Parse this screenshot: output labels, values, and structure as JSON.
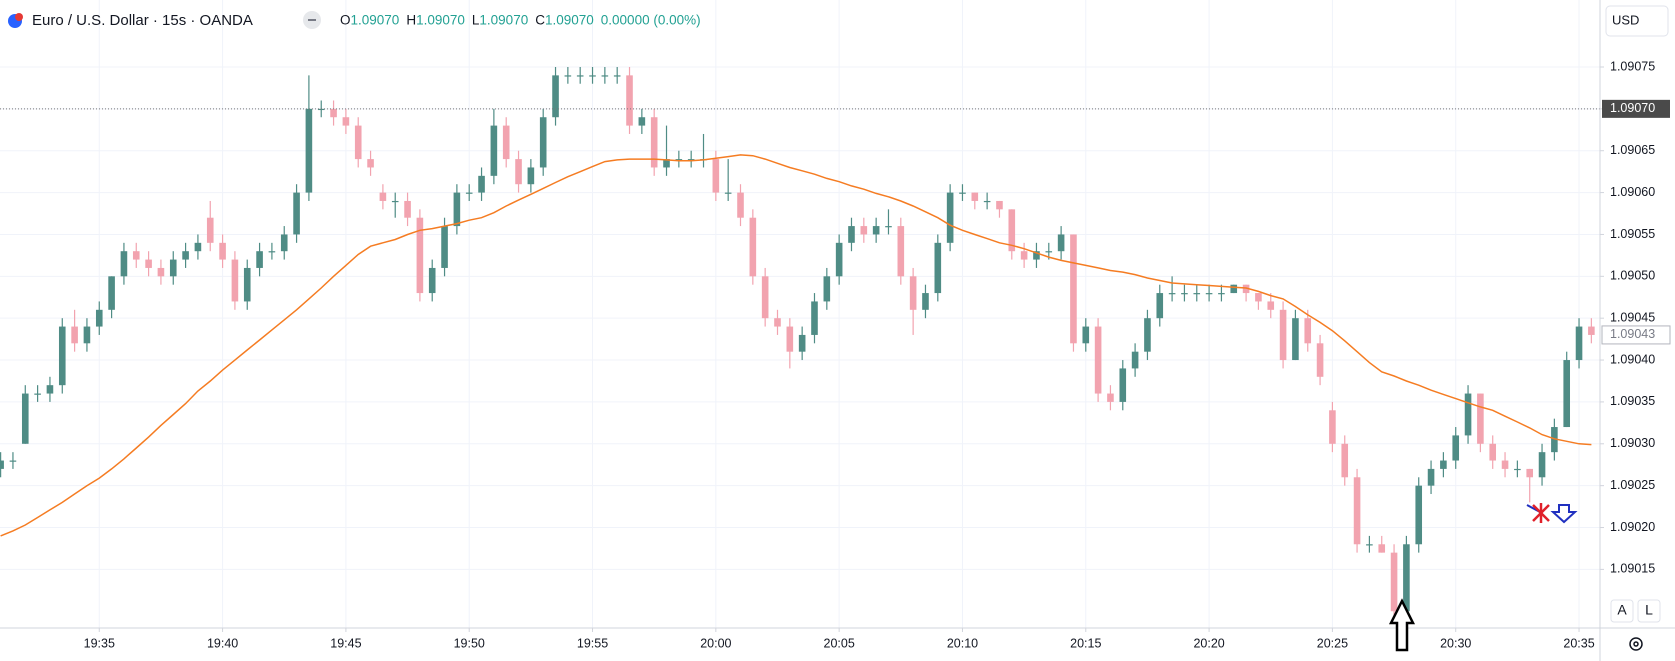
{
  "header": {
    "title": "Euro / U.S. Dollar · 15s · OANDA",
    "ohlc": [
      {
        "key": "O",
        "value": "1.09070"
      },
      {
        "key": "H",
        "value": "1.09070"
      },
      {
        "key": "L",
        "value": "1.09070"
      },
      {
        "key": "C",
        "value": "1.09070"
      }
    ],
    "change": "0.00000 (0.00%)"
  },
  "ui": {
    "currency": "USD",
    "buttons": [
      "A",
      "L"
    ]
  },
  "chart_data": {
    "type": "candlestick",
    "up_color": "#4f8c85",
    "down_color": "#f2a3af",
    "ma_color": "#f57c22",
    "grid": true,
    "xlim": [
      -0.05,
      129.7
    ],
    "xticks": [
      {
        "value": 8,
        "label": "19:35"
      },
      {
        "value": 18,
        "label": "19:40"
      },
      {
        "value": 28,
        "label": "19:45"
      },
      {
        "value": 38,
        "label": "19:50"
      },
      {
        "value": 48,
        "label": "19:55"
      },
      {
        "value": 58,
        "label": "20:00"
      },
      {
        "value": 68,
        "label": "20:05"
      },
      {
        "value": 78,
        "label": "20:10"
      },
      {
        "value": 88,
        "label": "20:15"
      },
      {
        "value": 98,
        "label": "20:20"
      },
      {
        "value": 108,
        "label": "20:25"
      },
      {
        "value": 118,
        "label": "20:30"
      },
      {
        "value": 128,
        "label": "20:35"
      }
    ],
    "ylim": [
      1.09008,
      1.09083
    ],
    "yticks": [
      {
        "value": 1.09015,
        "label": "1.09015"
      },
      {
        "value": 1.0902,
        "label": "1.09020"
      },
      {
        "value": 1.09025,
        "label": "1.09025"
      },
      {
        "value": 1.0903,
        "label": "1.09030"
      },
      {
        "value": 1.09035,
        "label": "1.09035"
      },
      {
        "value": 1.0904,
        "label": "1.09040"
      },
      {
        "value": 1.09045,
        "label": "1.09045"
      },
      {
        "value": 1.0905,
        "label": "1.09050"
      },
      {
        "value": 1.09055,
        "label": "1.09055"
      },
      {
        "value": 1.0906,
        "label": "1.09060"
      },
      {
        "value": 1.09065,
        "label": "1.09065"
      },
      {
        "value": 1.0907,
        "label": "1.09070"
      },
      {
        "value": 1.09075,
        "label": "1.09075"
      }
    ],
    "price_markers": [
      {
        "value": 1.0907,
        "label": "1.09070"
      },
      {
        "value": 1.09043,
        "label": "1.09043"
      }
    ],
    "open": [
      1.09027,
      1.09028,
      1.0903,
      1.09036,
      1.09036,
      1.09037,
      1.09044,
      1.09042,
      1.09044,
      1.09046,
      1.0905,
      1.09053,
      1.09052,
      1.09051,
      1.0905,
      1.09052,
      1.09053,
      1.09057,
      1.09054,
      1.09052,
      1.09047,
      1.09051,
      1.09053,
      1.09053,
      1.09055,
      1.0906,
      1.0907,
      1.0907,
      1.09069,
      1.09068,
      1.09064,
      1.0906,
      1.09059,
      1.09059,
      1.09057,
      1.09048,
      1.09051,
      1.09056,
      1.0906,
      1.0906,
      1.09062,
      1.09068,
      1.09064,
      1.09061,
      1.09063,
      1.09069,
      1.09074,
      1.09074,
      1.09074,
      1.09074,
      1.09074,
      1.09074,
      1.09068,
      1.09069,
      1.09063,
      1.09064,
      1.09064,
      1.09064,
      1.09064,
      1.0906,
      1.0906,
      1.09057,
      1.0905,
      1.09045,
      1.09044,
      1.09041,
      1.09043,
      1.09047,
      1.0905,
      1.09054,
      1.09056,
      1.09055,
      1.09056,
      1.09056,
      1.0905,
      1.09046,
      1.09048,
      1.09054,
      1.0906,
      1.0906,
      1.09059,
      1.09059,
      1.09058,
      1.09053,
      1.09052,
      1.09053,
      1.09053,
      1.09055,
      1.09042,
      1.09044,
      1.09036,
      1.09035,
      1.09039,
      1.09041,
      1.09045,
      1.09048,
      1.09048,
      1.09048,
      1.09048,
      1.09048,
      1.09048,
      1.09049,
      1.09048,
      1.09047,
      1.09046,
      1.0904,
      1.09045,
      1.09042,
      1.09034,
      1.0903,
      1.09026,
      1.09018,
      1.09018,
      1.09017,
      1.0901,
      1.09018,
      1.09025,
      1.09027,
      1.09028,
      1.09031,
      1.09036,
      1.0903,
      1.09028,
      1.09027,
      1.09027,
      1.09026,
      1.09029,
      1.09032,
      1.0904,
      1.09044
    ],
    "high": [
      1.09029,
      1.09029,
      1.09037,
      1.09037,
      1.09038,
      1.09045,
      1.09046,
      1.09045,
      1.09047,
      1.0905,
      1.09054,
      1.09054,
      1.09053,
      1.09052,
      1.09053,
      1.09054,
      1.09055,
      1.09059,
      1.09055,
      1.09053,
      1.09052,
      1.09054,
      1.09054,
      1.09056,
      1.09061,
      1.09074,
      1.09071,
      1.09071,
      1.0907,
      1.09069,
      1.09065,
      1.09061,
      1.0906,
      1.0906,
      1.09058,
      1.09052,
      1.09057,
      1.09061,
      1.09061,
      1.09063,
      1.0907,
      1.09069,
      1.09065,
      1.09064,
      1.0907,
      1.09075,
      1.09075,
      1.09075,
      1.09075,
      1.09075,
      1.09075,
      1.09075,
      1.0907,
      1.0907,
      1.09068,
      1.09065,
      1.09065,
      1.09067,
      1.09065,
      1.09064,
      1.09061,
      1.09058,
      1.09051,
      1.09046,
      1.09045,
      1.09044,
      1.09048,
      1.09051,
      1.09055,
      1.09057,
      1.09057,
      1.09057,
      1.09058,
      1.09057,
      1.09051,
      1.09049,
      1.09055,
      1.09061,
      1.09061,
      1.0906,
      1.0906,
      1.09059,
      1.09058,
      1.09054,
      1.09054,
      1.09054,
      1.09056,
      1.09055,
      1.09045,
      1.09045,
      1.09037,
      1.0904,
      1.09042,
      1.09046,
      1.09049,
      1.0905,
      1.09049,
      1.09049,
      1.09049,
      1.09049,
      1.09049,
      1.09049,
      1.09048,
      1.09048,
      1.09047,
      1.09046,
      1.09046,
      1.09043,
      1.09035,
      1.09031,
      1.09027,
      1.09019,
      1.09019,
      1.09018,
      1.09019,
      1.09026,
      1.09028,
      1.09029,
      1.09032,
      1.09037,
      1.09036,
      1.09031,
      1.09029,
      1.09028,
      1.09027,
      1.0903,
      1.09033,
      1.09041,
      1.09045,
      1.09045
    ],
    "low": [
      1.09026,
      1.09027,
      1.0903,
      1.09035,
      1.09035,
      1.09036,
      1.09041,
      1.09041,
      1.09043,
      1.09045,
      1.09049,
      1.09051,
      1.0905,
      1.09049,
      1.09049,
      1.09051,
      1.09052,
      1.09053,
      1.09051,
      1.09046,
      1.09046,
      1.0905,
      1.09052,
      1.09052,
      1.09054,
      1.09059,
      1.09069,
      1.09068,
      1.09067,
      1.09063,
      1.09062,
      1.09058,
      1.09057,
      1.09056,
      1.09047,
      1.09047,
      1.0905,
      1.09055,
      1.09059,
      1.09059,
      1.09061,
      1.09063,
      1.0906,
      1.0906,
      1.09062,
      1.09068,
      1.09073,
      1.09073,
      1.09073,
      1.09073,
      1.09073,
      1.09067,
      1.09067,
      1.09062,
      1.09062,
      1.09063,
      1.09063,
      1.09063,
      1.09059,
      1.09059,
      1.09056,
      1.09049,
      1.09044,
      1.09043,
      1.09039,
      1.0904,
      1.09042,
      1.09046,
      1.09049,
      1.09053,
      1.09054,
      1.09054,
      1.09055,
      1.09049,
      1.09043,
      1.09045,
      1.09047,
      1.09053,
      1.09059,
      1.09058,
      1.09058,
      1.09057,
      1.09052,
      1.09051,
      1.09051,
      1.09052,
      1.09052,
      1.09041,
      1.09041,
      1.09035,
      1.09034,
      1.09034,
      1.09038,
      1.0904,
      1.09044,
      1.09047,
      1.09047,
      1.09047,
      1.09047,
      1.09047,
      1.09048,
      1.09047,
      1.09046,
      1.09045,
      1.09039,
      1.0904,
      1.09041,
      1.09037,
      1.09029,
      1.09025,
      1.09017,
      1.09017,
      1.09017,
      1.09009,
      1.0901,
      1.09017,
      1.09024,
      1.09026,
      1.09027,
      1.0903,
      1.09029,
      1.09027,
      1.09026,
      1.09026,
      1.09023,
      1.09025,
      1.09028,
      1.09032,
      1.09039,
      1.09042
    ],
    "close": [
      1.09028,
      1.09028,
      1.09036,
      1.09036,
      1.09037,
      1.09044,
      1.09042,
      1.09044,
      1.09046,
      1.0905,
      1.09053,
      1.09052,
      1.09051,
      1.0905,
      1.09052,
      1.09053,
      1.09054,
      1.09054,
      1.09052,
      1.09047,
      1.09051,
      1.09053,
      1.09053,
      1.09055,
      1.0906,
      1.0907,
      1.0907,
      1.09069,
      1.09068,
      1.09064,
      1.09063,
      1.09059,
      1.09059,
      1.09057,
      1.09048,
      1.09051,
      1.09056,
      1.0906,
      1.0906,
      1.09062,
      1.09068,
      1.09064,
      1.09061,
      1.09063,
      1.09069,
      1.09074,
      1.09074,
      1.09074,
      1.09074,
      1.09074,
      1.09074,
      1.09068,
      1.09069,
      1.09063,
      1.09064,
      1.09064,
      1.09064,
      1.09064,
      1.0906,
      1.0906,
      1.09057,
      1.0905,
      1.09045,
      1.09044,
      1.09041,
      1.09043,
      1.09047,
      1.0905,
      1.09054,
      1.09056,
      1.09055,
      1.09056,
      1.09056,
      1.0905,
      1.09046,
      1.09048,
      1.09054,
      1.0906,
      1.0906,
      1.09059,
      1.09059,
      1.09058,
      1.09053,
      1.09052,
      1.09053,
      1.09053,
      1.09055,
      1.09042,
      1.09044,
      1.09036,
      1.09035,
      1.09039,
      1.09041,
      1.09045,
      1.09048,
      1.09048,
      1.09048,
      1.09048,
      1.09048,
      1.09048,
      1.09049,
      1.09048,
      1.09047,
      1.09046,
      1.0904,
      1.09045,
      1.09042,
      1.09038,
      1.0903,
      1.09026,
      1.09018,
      1.09018,
      1.09017,
      1.0901,
      1.09018,
      1.09025,
      1.09027,
      1.09028,
      1.09031,
      1.09036,
      1.0903,
      1.09028,
      1.09027,
      1.09027,
      1.09026,
      1.09029,
      1.09032,
      1.0904,
      1.09044,
      1.09043
    ],
    "ma": [
      1.09019,
      1.090196,
      1.090203,
      1.090212,
      1.090221,
      1.09023,
      1.09024,
      1.09025,
      1.090259,
      1.09027,
      1.090282,
      1.090295,
      1.090308,
      1.090322,
      1.090335,
      1.090348,
      1.090363,
      1.090375,
      1.090388,
      1.0904,
      1.090412,
      1.090424,
      1.090436,
      1.090448,
      1.09046,
      1.090473,
      1.090486,
      1.0905,
      1.090513,
      1.090526,
      1.090536,
      1.09054,
      1.090544,
      1.09055,
      1.090555,
      1.090557,
      1.09056,
      1.090563,
      1.090567,
      1.09057,
      1.090576,
      1.090584,
      1.090591,
      1.090598,
      1.090605,
      1.090612,
      1.090619,
      1.090625,
      1.090631,
      1.090637,
      1.090639,
      1.09064,
      1.09064,
      1.09064,
      1.090639,
      1.090638,
      1.090638,
      1.090639,
      1.090641,
      1.090643,
      1.090645,
      1.090644,
      1.09064,
      1.090635,
      1.09063,
      1.090626,
      1.090622,
      1.090617,
      1.090613,
      1.090608,
      1.090604,
      1.090599,
      1.090595,
      1.09059,
      1.090584,
      1.090577,
      1.09057,
      1.090561,
      1.090555,
      1.09055,
      1.090545,
      1.09054,
      1.090537,
      1.090533,
      1.090528,
      1.090523,
      1.090519,
      1.090516,
      1.090513,
      1.09051,
      1.090507,
      1.090505,
      1.090502,
      1.090498,
      1.090495,
      1.090492,
      1.090491,
      1.09049,
      1.090489,
      1.090488,
      1.090487,
      1.090486,
      1.090482,
      1.090477,
      1.090473,
      1.090464,
      1.090454,
      1.090445,
      1.090435,
      1.090423,
      1.09041,
      1.090397,
      1.090386,
      1.090381,
      1.090375,
      1.09037,
      1.090364,
      1.090359,
      1.090354,
      1.090349,
      1.090344,
      1.09034,
      1.090333,
      1.090326,
      1.090319,
      1.090311,
      1.090306,
      1.090303,
      1.0903,
      1.090299
    ]
  }
}
